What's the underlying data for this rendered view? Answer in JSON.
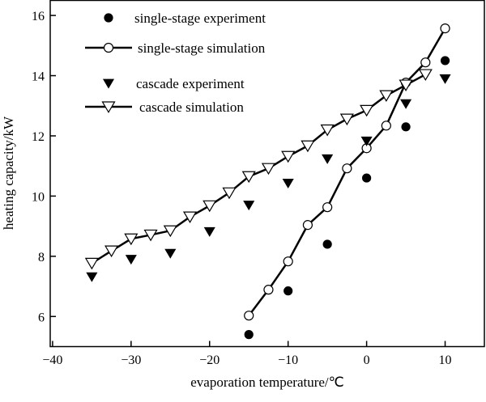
{
  "chart_data": {
    "type": "line",
    "xlabel": "evaporation temperature/℃",
    "ylabel": "heating capacity/kW",
    "xlim": [
      -40.3,
      15
    ],
    "ylim": [
      5.0,
      16.5
    ],
    "xticks": [
      -40,
      -30,
      -20,
      -10,
      0,
      10
    ],
    "yticks": [
      6,
      8,
      10,
      12,
      14,
      16
    ],
    "grid": false,
    "legend": "top-left",
    "series": [
      {
        "name": "single-stage experiment",
        "marker": "filled-circle",
        "line": false,
        "x": [
          -15,
          -10,
          -5,
          0,
          5,
          10
        ],
        "y": [
          5.4,
          6.85,
          8.4,
          10.6,
          12.3,
          14.5
        ]
      },
      {
        "name": "single-stage simulation",
        "marker": "open-circle",
        "line": true,
        "x": [
          -15,
          -12.5,
          -10,
          -7.5,
          -5,
          -2.5,
          0,
          2.5,
          5,
          7.5,
          10
        ],
        "y": [
          6.03,
          6.89,
          7.83,
          9.04,
          9.63,
          10.92,
          11.59,
          12.34,
          13.77,
          14.44,
          15.57
        ]
      },
      {
        "name": "cascade experiment",
        "marker": "filled-triangle-down",
        "line": false,
        "x": [
          -35,
          -30,
          -25,
          -20,
          -15,
          -10,
          -5,
          0,
          5,
          10
        ],
        "y": [
          7.32,
          7.9,
          8.1,
          8.82,
          9.7,
          10.43,
          11.24,
          11.83,
          13.07,
          13.9
        ]
      },
      {
        "name": "cascade simulation",
        "marker": "open-triangle-down",
        "line": true,
        "x": [
          -35,
          -32.5,
          -30,
          -27.5,
          -25,
          -22.5,
          -20,
          -17.5,
          -15,
          -12.5,
          -10,
          -7.5,
          -5,
          -2.5,
          0,
          2.5,
          5,
          7.5
        ],
        "y": [
          7.77,
          8.18,
          8.58,
          8.71,
          8.85,
          9.31,
          9.68,
          10.11,
          10.65,
          10.92,
          11.32,
          11.67,
          12.2,
          12.56,
          12.85,
          13.34,
          13.69,
          14.04
        ]
      }
    ]
  }
}
